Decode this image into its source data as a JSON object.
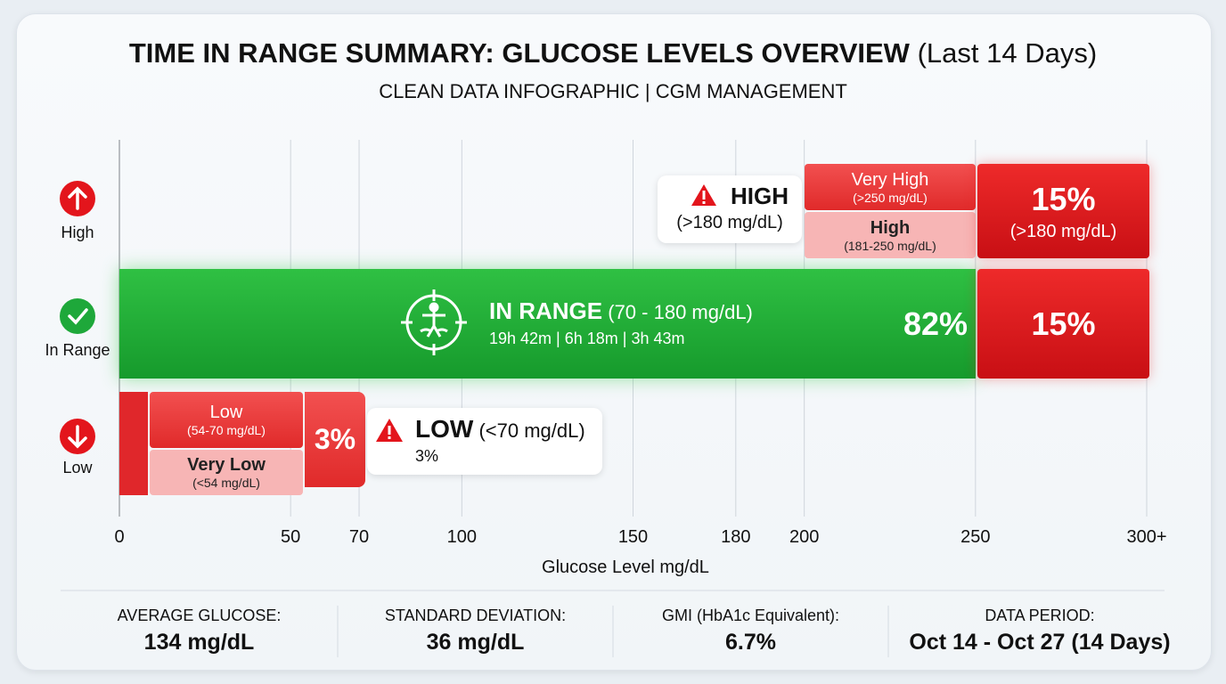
{
  "title": {
    "main": "TIME IN RANGE SUMMARY: GLUCOSE LEVELS OVERVIEW",
    "suffix": "(Last 14 Days)"
  },
  "subtitle": "CLEAN DATA INFOGRAPHIC | CGM MANAGEMENT",
  "rows": [
    {
      "label": "High"
    },
    {
      "label": "In Range"
    },
    {
      "label": "Low"
    }
  ],
  "high": {
    "callout_title": "HIGH",
    "callout_range": "(>180 mg/dL)",
    "segments": [
      {
        "name": "Very High",
        "range": "(>250 mg/dL)"
      },
      {
        "name": "High",
        "range": "(181-250 mg/dL)"
      }
    ],
    "total": "15%",
    "total_range": "(>180 mg/dL)"
  },
  "in_range": {
    "title": "IN RANGE",
    "range": "(70 - 180 mg/dL)",
    "durations": "19h 42m | 6h 18m | 3h 43m",
    "percent": "82%",
    "high_percent": "15%"
  },
  "low": {
    "callout_title": "LOW",
    "callout_range": "(<70 mg/dL)",
    "callout_value": "3%",
    "segments": [
      {
        "name": "Low",
        "range": "(54-70 mg/dL)"
      },
      {
        "name": "Very Low",
        "range": "(<54 mg/dL)"
      }
    ],
    "total": "3%"
  },
  "axis": {
    "label": "Glucose Level mg/dL",
    "xlim": [
      0,
      300
    ],
    "ticks": [
      0,
      50,
      70,
      100,
      150,
      180,
      200,
      250,
      {
        "value": 300,
        "label": "300+"
      }
    ]
  },
  "stats": [
    {
      "label": "AVERAGE GLUCOSE:",
      "value": "134 mg/dL"
    },
    {
      "label": "STANDARD DEVIATION:",
      "value": "36 mg/dL"
    },
    {
      "label": "GMI (HbA1c Equivalent):",
      "value": "6.7%"
    },
    {
      "label": "DATA PERIOD:",
      "value": "Oct 14 - Oct 27 (14 Days)"
    }
  ]
}
